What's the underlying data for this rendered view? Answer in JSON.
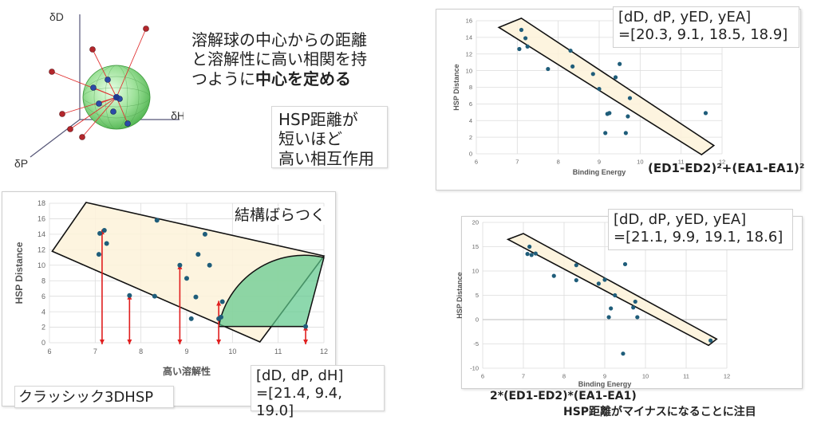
{
  "diagram": {
    "axis_d": "δD",
    "axis_h": "δH",
    "axis_p": "δP"
  },
  "intro": {
    "line1": "溶解球の中心からの距離",
    "line2": "と溶解性に高い相関を持",
    "line3_prefix": "つように",
    "line3_bold": "中心を定める"
  },
  "hsp_note": {
    "line1": "HSP距離が",
    "line2": "短いほど",
    "line3": "高い相互作用"
  },
  "chart_left": {
    "annotation": "結構ばらつく",
    "result_line1": "[dD, dP, dH]",
    "result_line2": "=[21.4, 9.4, 19.0]",
    "caption": "クラッシック3DHSP"
  },
  "chart_tr": {
    "result_line1": "[dD, dP, yED, yEA]",
    "result_line2": "=[20.3, 9.1, 18.5, 18.9]",
    "formula": "(ED1-ED2)²+(EA1-EA1)²"
  },
  "chart_br": {
    "result_line1": "[dD, dP, yED, yEA]",
    "result_line2": "=[21.1, 9.9, 19.1, 18.6]",
    "formula": "2*(ED1-ED2)*(EA1-EA1)",
    "note": "HSP距離がマイナスになることに注目"
  },
  "chart_data": [
    {
      "id": "left",
      "type": "scatter",
      "xlabel": "高い溶解性",
      "ylabel": "HSP Distance",
      "xlim": [
        6,
        12
      ],
      "ylim": [
        0,
        18
      ],
      "xticks": [
        6,
        7,
        8,
        9,
        10,
        11,
        12
      ],
      "yticks": [
        0,
        2,
        4,
        6,
        8,
        10,
        12,
        14,
        16,
        18
      ],
      "grid": true,
      "points": [
        {
          "x": 7.08,
          "y": 11.4
        },
        {
          "x": 7.1,
          "y": 14.1
        },
        {
          "x": 7.2,
          "y": 14.5
        },
        {
          "x": 7.25,
          "y": 12.8
        },
        {
          "x": 7.75,
          "y": 6.1
        },
        {
          "x": 8.35,
          "y": 15.8
        },
        {
          "x": 8.3,
          "y": 6.0
        },
        {
          "x": 8.85,
          "y": 10.0
        },
        {
          "x": 9.0,
          "y": 8.3
        },
        {
          "x": 9.1,
          "y": 3.1
        },
        {
          "x": 9.2,
          "y": 5.9
        },
        {
          "x": 9.25,
          "y": 11.4
        },
        {
          "x": 9.4,
          "y": 14.0
        },
        {
          "x": 9.5,
          "y": 10.0
        },
        {
          "x": 9.7,
          "y": 3.1
        },
        {
          "x": 9.75,
          "y": 3.3
        },
        {
          "x": 9.78,
          "y": 5.3
        },
        {
          "x": 11.6,
          "y": 2.1
        }
      ]
    },
    {
      "id": "top-right",
      "type": "scatter",
      "xlabel": "Binding Energy",
      "ylabel": "HSP Distance",
      "xlim": [
        6,
        12
      ],
      "ylim": [
        0,
        16
      ],
      "xticks": [
        6,
        7,
        8,
        9,
        10,
        11,
        12
      ],
      "yticks": [
        0,
        2,
        4,
        6,
        8,
        10,
        12,
        14,
        16
      ],
      "grid": true,
      "points": [
        {
          "x": 7.05,
          "y": 12.6
        },
        {
          "x": 7.1,
          "y": 14.9
        },
        {
          "x": 7.2,
          "y": 13.9
        },
        {
          "x": 7.25,
          "y": 12.9
        },
        {
          "x": 7.75,
          "y": 10.2
        },
        {
          "x": 8.3,
          "y": 12.4
        },
        {
          "x": 8.35,
          "y": 10.5
        },
        {
          "x": 8.85,
          "y": 9.6
        },
        {
          "x": 9.0,
          "y": 7.8
        },
        {
          "x": 9.15,
          "y": 2.5
        },
        {
          "x": 9.2,
          "y": 4.8
        },
        {
          "x": 9.25,
          "y": 4.9
        },
        {
          "x": 9.4,
          "y": 9.2
        },
        {
          "x": 9.5,
          "y": 10.8
        },
        {
          "x": 9.65,
          "y": 2.5
        },
        {
          "x": 9.7,
          "y": 4.5
        },
        {
          "x": 9.75,
          "y": 6.7
        },
        {
          "x": 11.6,
          "y": 4.9
        }
      ]
    },
    {
      "id": "bottom-right",
      "type": "scatter",
      "xlabel": "Binding Energy",
      "ylabel": "HSP Distance",
      "xlim": [
        6,
        12
      ],
      "ylim": [
        -10,
        20
      ],
      "xticks": [
        6,
        7,
        8,
        9,
        10,
        11,
        12
      ],
      "yticks": [
        -10,
        -5,
        0,
        5,
        10,
        15,
        20
      ],
      "grid": true,
      "points": [
        {
          "x": 7.1,
          "y": 13.5
        },
        {
          "x": 7.15,
          "y": 15.0
        },
        {
          "x": 7.2,
          "y": 13.3
        },
        {
          "x": 7.3,
          "y": 13.6
        },
        {
          "x": 7.75,
          "y": 9.0
        },
        {
          "x": 8.3,
          "y": 11.2
        },
        {
          "x": 8.3,
          "y": 8.1
        },
        {
          "x": 8.85,
          "y": 7.4
        },
        {
          "x": 9.0,
          "y": 8.2
        },
        {
          "x": 9.1,
          "y": 0.5
        },
        {
          "x": 9.15,
          "y": 2.3
        },
        {
          "x": 9.25,
          "y": 5.0
        },
        {
          "x": 9.45,
          "y": -7.0
        },
        {
          "x": 9.5,
          "y": 11.4
        },
        {
          "x": 9.7,
          "y": 2.5
        },
        {
          "x": 9.75,
          "y": 3.7
        },
        {
          "x": 9.8,
          "y": 0.5
        },
        {
          "x": 11.6,
          "y": -4.3
        }
      ]
    }
  ]
}
